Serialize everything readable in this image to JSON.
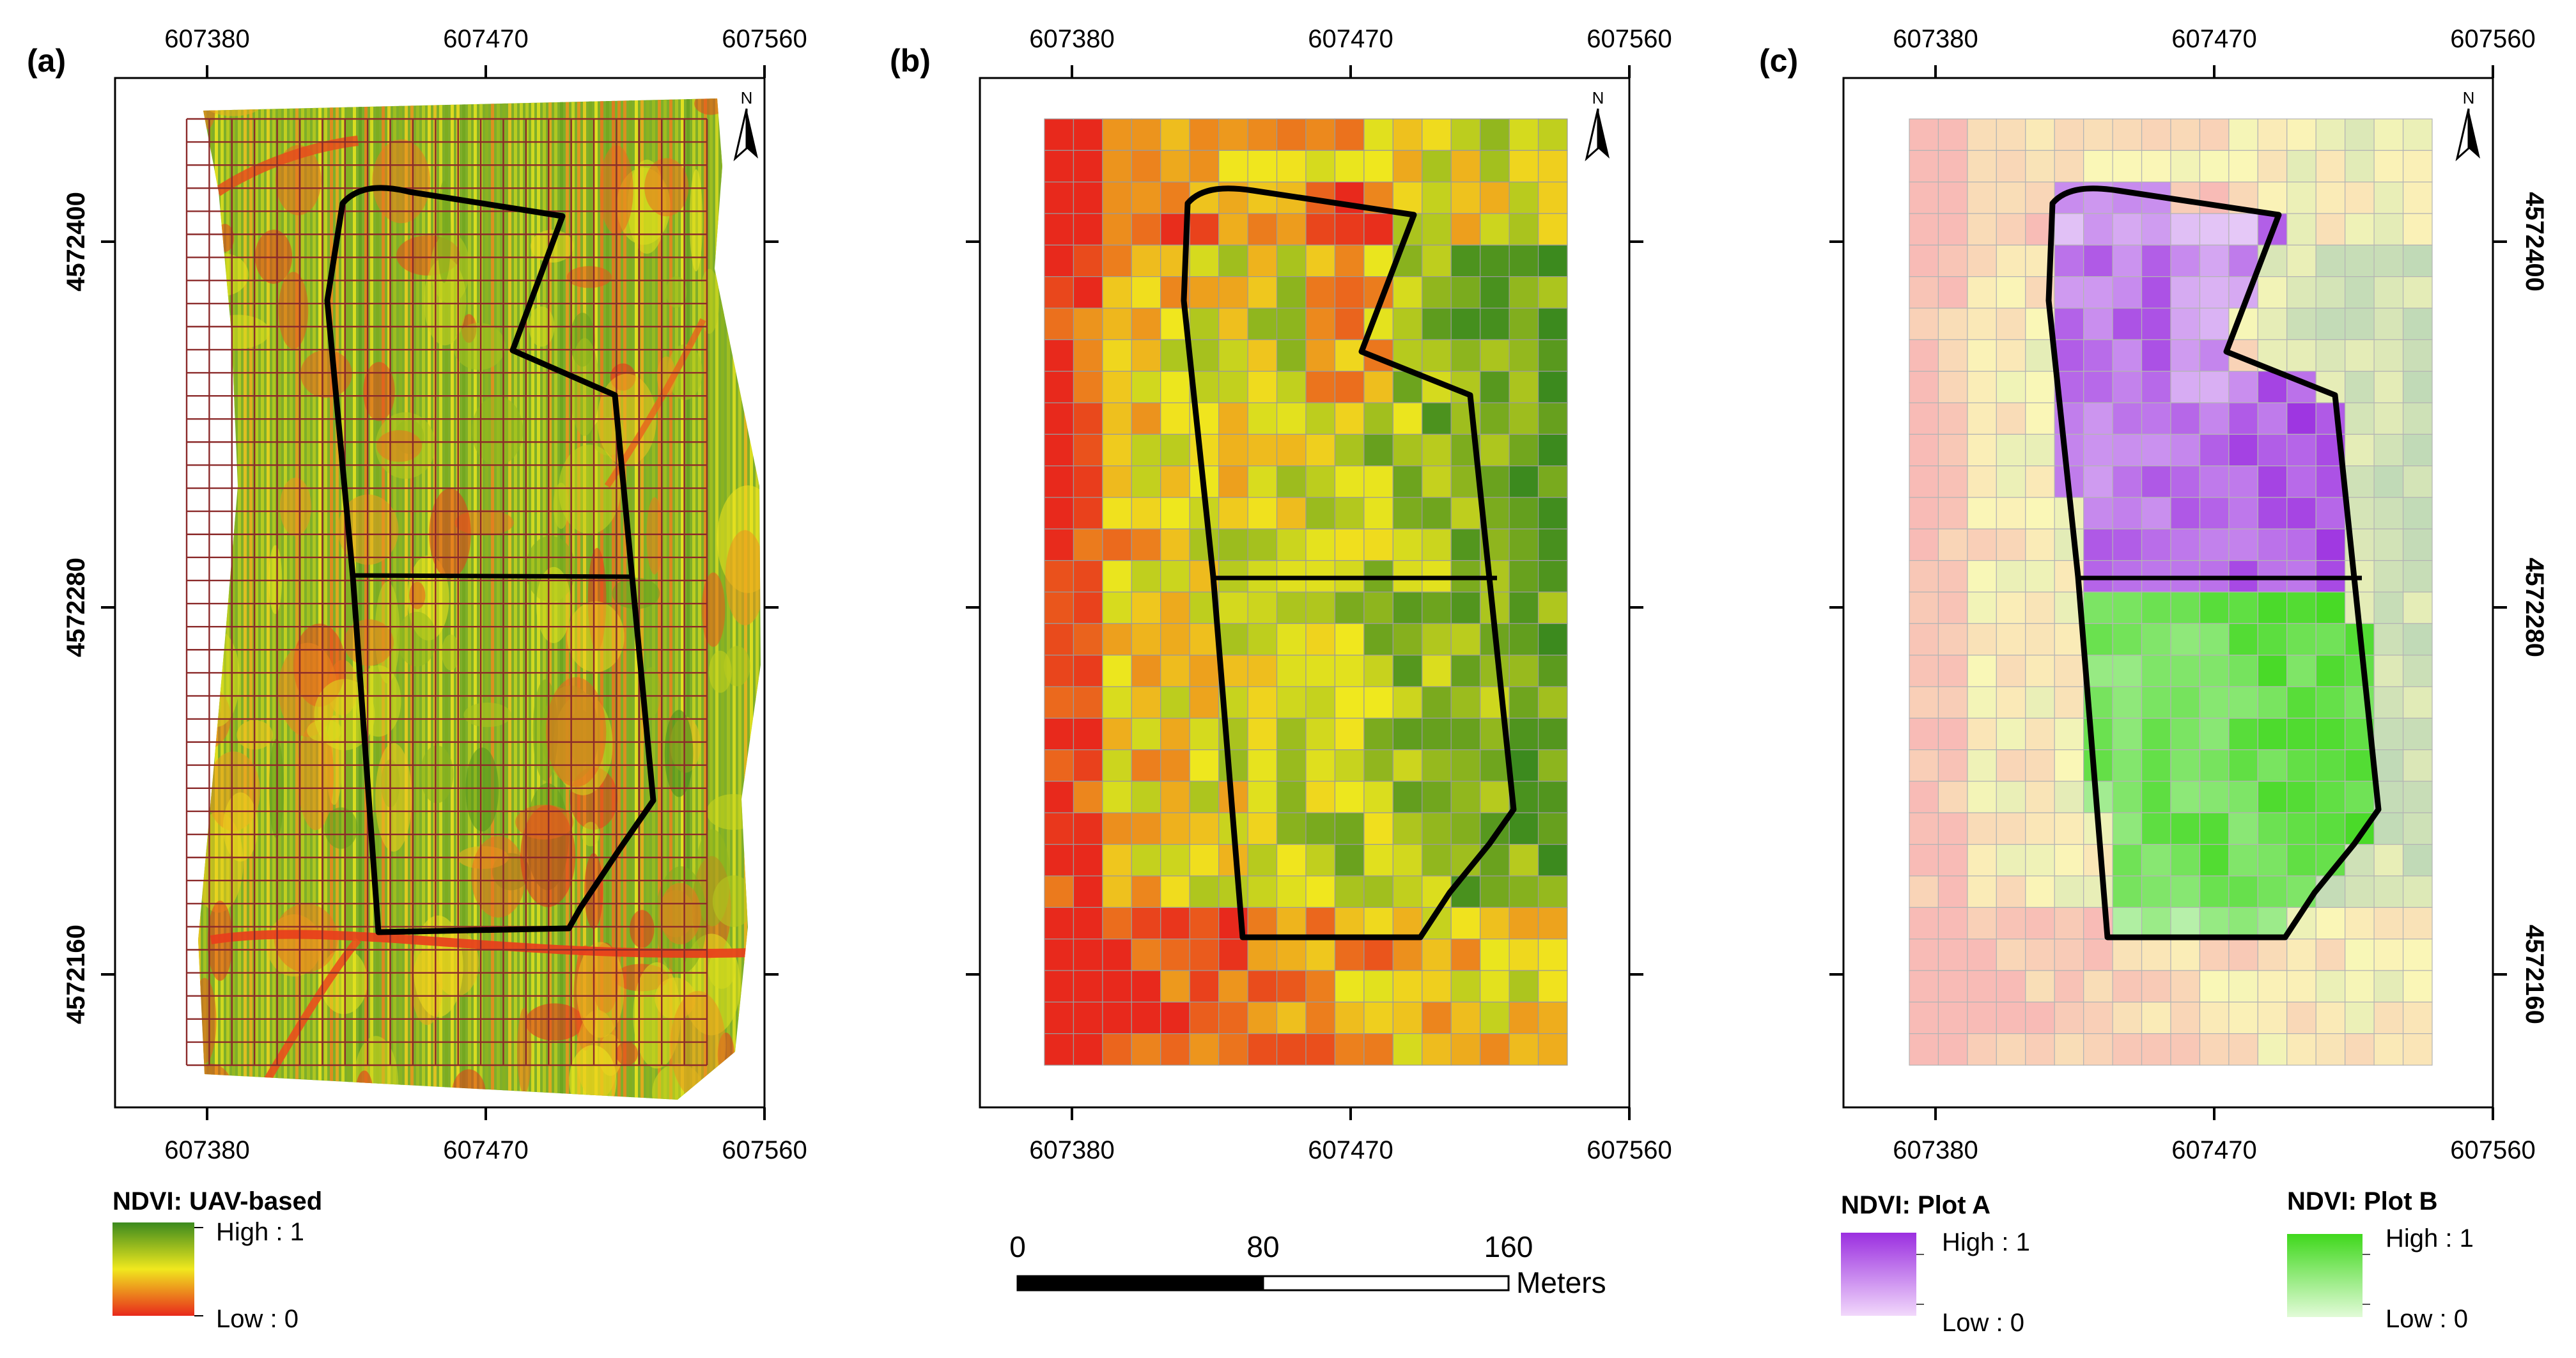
{
  "figure": {
    "panels": [
      {
        "id": "a",
        "label": "(a)"
      },
      {
        "id": "b",
        "label": "(b)"
      },
      {
        "id": "c",
        "label": "(c)"
      }
    ],
    "x_ticks": [
      "607380",
      "607470",
      "607560"
    ],
    "y_ticks": [
      "4572400",
      "4572280",
      "4572160"
    ],
    "north_label": "N"
  },
  "legend_a": {
    "title": "NDVI: UAV-based",
    "high": "High : 1",
    "low": "Low : 0"
  },
  "legend_plot_a": {
    "title": "NDVI: Plot A",
    "high": "High : 1",
    "low": "Low : 0"
  },
  "legend_plot_b": {
    "title": "NDVI: Plot B",
    "high": "High : 1",
    "low": "Low : 0"
  },
  "scalebar": {
    "labels": [
      "0",
      "80",
      "160"
    ],
    "unit": "Meters"
  },
  "colors": {
    "ndvi_low": "#e8291c",
    "ndvi_mid": "#f0e81e",
    "ndvi_high": "#3c8a1e",
    "grid_a": "#8b2a2a",
    "plot_a": "#9b2fe0",
    "plot_b": "#3fd81c"
  }
}
